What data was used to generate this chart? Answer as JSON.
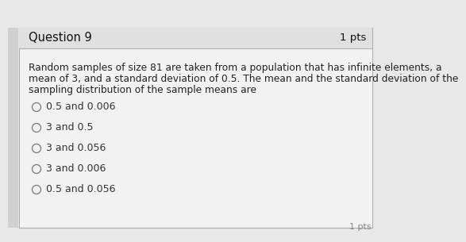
{
  "title": "Question 9",
  "pts": "1 pts",
  "question_text_lines": [
    "Random samples of size 81 are taken from a population that has infinite elements, a",
    "mean of 3, and a standard deviation of 0.5. The mean and the standard deviation of the",
    "sampling distribution of the sample means are"
  ],
  "options": [
    "0.5 and 0.006",
    "3 and 0.5",
    "3 and 0.056",
    "3 and 0.006",
    "0.5 and 0.056"
  ],
  "bg_color": "#e8e8e8",
  "content_bg": "#f2f2f2",
  "header_bg": "#e0e0e0",
  "border_color": "#b0b0b0",
  "title_color": "#111111",
  "text_color": "#222222",
  "option_color": "#333333",
  "title_fontsize": 10.5,
  "pts_fontsize": 9.5,
  "question_fontsize": 8.8,
  "option_fontsize": 9.0,
  "bottom_pts_color": "#888888",
  "left_bar_color": "#c0c0c0"
}
